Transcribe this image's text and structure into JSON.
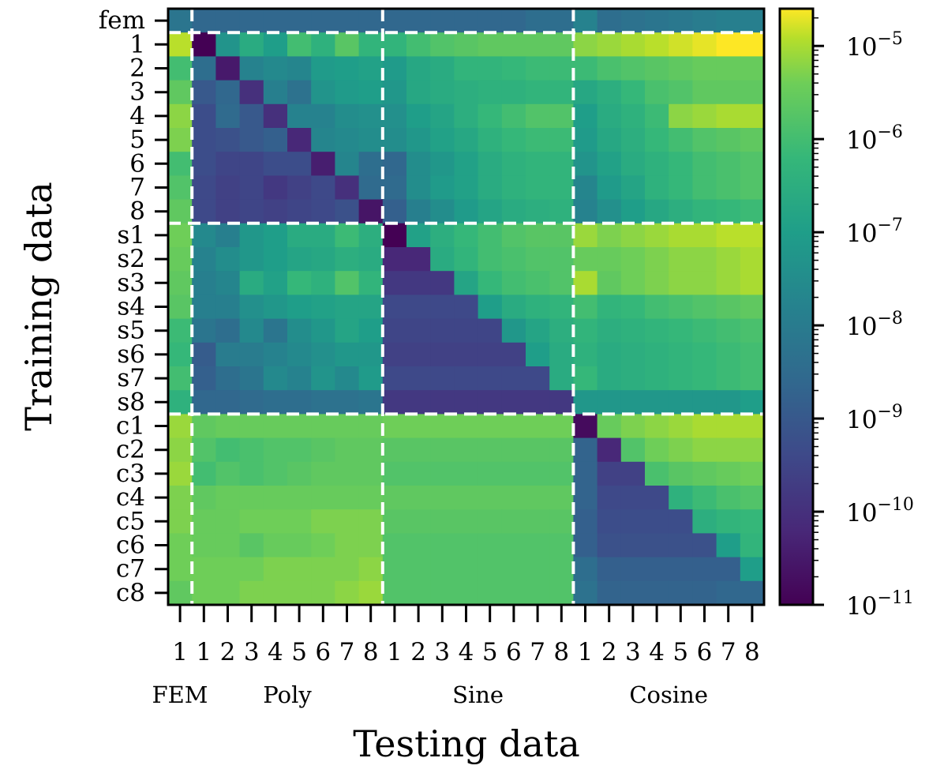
{
  "chart_data": {
    "type": "heatmap",
    "title": "",
    "xlabel": "Testing data",
    "ylabel": "Training data",
    "color_scale": "viridis",
    "scale": "log10",
    "value_range_log10": [
      -11,
      -4.6
    ],
    "x_tick_labels": [
      "1",
      "1",
      "2",
      "3",
      "4",
      "5",
      "6",
      "7",
      "8",
      "1",
      "2",
      "3",
      "4",
      "5",
      "6",
      "7",
      "8",
      "1",
      "2",
      "3",
      "4",
      "5",
      "6",
      "7",
      "8"
    ],
    "x_group_labels": [
      "FEM",
      "Poly",
      "Sine",
      "Cosine"
    ],
    "y_tick_labels": [
      "fem",
      "1",
      "2",
      "3",
      "4",
      "5",
      "6",
      "7",
      "8",
      "s1",
      "s2",
      "s3",
      "s4",
      "s5",
      "s6",
      "s7",
      "s8",
      "c1",
      "c2",
      "c3",
      "c4",
      "c5",
      "c6",
      "c7",
      "c8"
    ],
    "colorbar": {
      "tick_values_log10": [
        -5,
        -6,
        -7,
        -8,
        -9,
        -10,
        -11
      ],
      "tick_labels": [
        "10−5",
        "10−6",
        "10−7",
        "10−8",
        "10−9",
        "10−10",
        "10−11"
      ]
    },
    "divider_rows_after": [
      0,
      8,
      16
    ],
    "divider_cols_after": [
      0,
      8,
      16
    ],
    "values_log10": [
      [
        -8.2,
        -8.6,
        -8.6,
        -8.6,
        -8.6,
        -8.6,
        -8.6,
        -8.6,
        -8.6,
        -8.6,
        -8.6,
        -8.6,
        -8.6,
        -8.6,
        -8.6,
        -8.4,
        -8.4,
        -7.8,
        -8.4,
        -8.3,
        -8.2,
        -8.1,
        -8.0,
        -7.9,
        -7.9
      ],
      [
        -4.9,
        -11.0,
        -7.3,
        -6.6,
        -7.0,
        -6.0,
        -6.4,
        -5.7,
        -6.3,
        -6.3,
        -6.0,
        -5.8,
        -5.7,
        -5.6,
        -5.6,
        -5.6,
        -5.6,
        -5.2,
        -5.1,
        -5.0,
        -4.9,
        -4.8,
        -4.7,
        -4.6,
        -4.6
      ],
      [
        -6.0,
        -8.4,
        -10.5,
        -7.8,
        -7.6,
        -7.7,
        -7.1,
        -7.0,
        -6.9,
        -7.1,
        -6.7,
        -6.6,
        -6.3,
        -6.3,
        -6.2,
        -6.1,
        -6.1,
        -6.1,
        -5.9,
        -5.8,
        -5.7,
        -5.6,
        -5.5,
        -5.5,
        -5.5
      ],
      [
        -5.6,
        -9.0,
        -8.6,
        -10.0,
        -7.9,
        -8.3,
        -7.3,
        -7.1,
        -7.0,
        -7.2,
        -6.7,
        -6.6,
        -6.5,
        -6.4,
        -6.4,
        -6.3,
        -6.3,
        -6.7,
        -6.5,
        -6.2,
        -5.9,
        -5.8,
        -5.6,
        -5.6,
        -5.6
      ],
      [
        -5.2,
        -9.3,
        -8.5,
        -9.0,
        -10.0,
        -7.8,
        -7.8,
        -7.5,
        -7.4,
        -7.4,
        -7.0,
        -6.8,
        -6.5,
        -6.2,
        -6.0,
        -5.8,
        -5.8,
        -7.0,
        -6.6,
        -6.4,
        -6.1,
        -5.2,
        -5.1,
        -5.0,
        -5.0
      ],
      [
        -5.3,
        -9.3,
        -9.2,
        -9.0,
        -8.8,
        -10.2,
        -7.7,
        -7.6,
        -7.5,
        -7.5,
        -7.2,
        -6.9,
        -6.7,
        -6.4,
        -6.2,
        -6.1,
        -6.1,
        -7.1,
        -6.7,
        -6.5,
        -6.2,
        -6.0,
        -5.8,
        -5.7,
        -5.6
      ],
      [
        -6.0,
        -9.3,
        -9.5,
        -9.5,
        -9.3,
        -9.3,
        -10.4,
        -7.7,
        -8.4,
        -8.6,
        -7.5,
        -7.2,
        -6.9,
        -6.6,
        -6.4,
        -6.3,
        -6.3,
        -7.3,
        -6.9,
        -6.6,
        -6.4,
        -6.2,
        -6.0,
        -5.9,
        -5.8
      ],
      [
        -5.8,
        -9.4,
        -9.6,
        -9.5,
        -9.8,
        -9.6,
        -9.4,
        -10.0,
        -8.5,
        -8.5,
        -7.5,
        -7.1,
        -6.9,
        -6.6,
        -6.4,
        -6.3,
        -6.3,
        -7.7,
        -7.1,
        -6.8,
        -6.4,
        -6.2,
        -6.0,
        -5.9,
        -5.8
      ],
      [
        -5.6,
        -9.4,
        -9.6,
        -9.5,
        -9.6,
        -9.5,
        -9.4,
        -9.2,
        -10.6,
        -8.8,
        -7.9,
        -7.5,
        -7.1,
        -6.8,
        -6.6,
        -6.5,
        -6.4,
        -7.8,
        -7.4,
        -7.0,
        -6.7,
        -6.5,
        -6.3,
        -6.2,
        -6.1
      ],
      [
        -5.4,
        -7.6,
        -7.9,
        -7.2,
        -7.0,
        -6.6,
        -6.6,
        -6.1,
        -6.5,
        -11.0,
        -6.9,
        -6.5,
        -6.2,
        -6.0,
        -5.8,
        -5.7,
        -5.7,
        -5.1,
        -5.3,
        -5.2,
        -5.1,
        -5.0,
        -5.0,
        -4.9,
        -4.9
      ],
      [
        -5.5,
        -7.8,
        -7.5,
        -7.2,
        -7.0,
        -6.8,
        -6.7,
        -6.5,
        -6.6,
        -10.2,
        -10.2,
        -6.6,
        -6.3,
        -6.0,
        -5.9,
        -5.8,
        -5.8,
        -5.5,
        -5.5,
        -5.4,
        -5.3,
        -5.2,
        -5.2,
        -5.1,
        -5.0
      ],
      [
        -5.6,
        -7.9,
        -7.7,
        -6.6,
        -6.9,
        -6.2,
        -6.4,
        -5.8,
        -6.3,
        -9.8,
        -9.8,
        -9.8,
        -6.8,
        -6.2,
        -6.0,
        -5.9,
        -5.8,
        -5.0,
        -5.6,
        -5.4,
        -5.3,
        -5.2,
        -5.2,
        -5.1,
        -5.0
      ],
      [
        -5.7,
        -7.9,
        -7.9,
        -7.4,
        -7.2,
        -7.0,
        -6.9,
        -6.8,
        -6.8,
        -9.4,
        -9.4,
        -9.4,
        -9.4,
        -7.0,
        -6.6,
        -6.4,
        -6.3,
        -6.0,
        -6.3,
        -6.2,
        -6.0,
        -5.9,
        -5.8,
        -5.7,
        -5.6
      ],
      [
        -6.1,
        -8.2,
        -8.4,
        -7.6,
        -8.2,
        -7.5,
        -7.2,
        -6.8,
        -7.0,
        -9.5,
        -9.5,
        -9.5,
        -9.5,
        -9.5,
        -7.2,
        -6.8,
        -6.5,
        -6.3,
        -6.5,
        -6.4,
        -6.3,
        -6.2,
        -6.1,
        -6.0,
        -5.9
      ],
      [
        -6.2,
        -8.9,
        -8.0,
        -8.0,
        -7.8,
        -7.6,
        -7.4,
        -7.2,
        -7.2,
        -9.6,
        -9.6,
        -9.6,
        -9.6,
        -9.6,
        -9.6,
        -7.0,
        -6.6,
        -6.4,
        -6.6,
        -6.5,
        -6.4,
        -6.3,
        -6.2,
        -6.1,
        -6.0
      ],
      [
        -6.0,
        -8.8,
        -8.4,
        -8.2,
        -7.6,
        -7.8,
        -7.3,
        -7.6,
        -7.1,
        -9.4,
        -9.4,
        -9.4,
        -9.4,
        -9.4,
        -9.4,
        -9.4,
        -6.6,
        -6.2,
        -6.6,
        -6.5,
        -6.4,
        -6.3,
        -6.2,
        -6.1,
        -6.0
      ],
      [
        -6.4,
        -8.6,
        -8.6,
        -8.5,
        -8.4,
        -8.4,
        -8.3,
        -8.3,
        -8.2,
        -9.8,
        -9.8,
        -9.8,
        -9.8,
        -9.8,
        -9.8,
        -9.8,
        -9.8,
        -7.2,
        -7.2,
        -7.2,
        -7.2,
        -7.2,
        -7.2,
        -7.2,
        -7.0
      ],
      [
        -5.1,
        -5.6,
        -5.5,
        -5.5,
        -5.5,
        -5.5,
        -5.5,
        -5.5,
        -5.5,
        -5.4,
        -5.4,
        -5.4,
        -5.4,
        -5.4,
        -5.4,
        -5.4,
        -5.4,
        -10.8,
        -5.5,
        -5.3,
        -5.2,
        -5.1,
        -5.0,
        -5.0,
        -5.0
      ],
      [
        -5.2,
        -5.8,
        -6.0,
        -5.9,
        -5.8,
        -5.8,
        -5.7,
        -5.6,
        -5.6,
        -5.7,
        -5.7,
        -5.7,
        -5.7,
        -5.7,
        -5.7,
        -5.7,
        -5.7,
        -8.7,
        -10.2,
        -5.8,
        -5.4,
        -5.3,
        -5.2,
        -5.2,
        -5.2
      ],
      [
        -5.1,
        -6.0,
        -5.8,
        -5.9,
        -5.8,
        -5.7,
        -5.6,
        -5.6,
        -5.6,
        -5.8,
        -5.8,
        -5.8,
        -5.8,
        -5.8,
        -5.8,
        -5.8,
        -5.8,
        -8.7,
        -9.6,
        -9.6,
        -5.9,
        -5.7,
        -5.6,
        -5.5,
        -5.4
      ],
      [
        -5.3,
        -5.6,
        -5.5,
        -5.5,
        -5.5,
        -5.5,
        -5.5,
        -5.5,
        -5.5,
        -5.6,
        -5.6,
        -5.6,
        -5.6,
        -5.6,
        -5.6,
        -5.6,
        -5.6,
        -8.7,
        -9.4,
        -9.4,
        -9.4,
        -6.4,
        -6.1,
        -5.9,
        -5.8
      ],
      [
        -5.3,
        -5.5,
        -5.5,
        -5.4,
        -5.4,
        -5.4,
        -5.3,
        -5.3,
        -5.3,
        -5.7,
        -5.7,
        -5.7,
        -5.7,
        -5.7,
        -5.7,
        -5.7,
        -5.7,
        -8.8,
        -9.3,
        -9.3,
        -9.3,
        -9.3,
        -6.5,
        -6.3,
        -6.2
      ],
      [
        -5.4,
        -5.5,
        -5.5,
        -5.7,
        -5.5,
        -5.5,
        -5.4,
        -5.3,
        -5.3,
        -5.8,
        -5.8,
        -5.8,
        -5.8,
        -5.8,
        -5.8,
        -5.8,
        -5.8,
        -8.8,
        -9.2,
        -9.2,
        -9.2,
        -9.2,
        -9.2,
        -7.0,
        -6.3
      ],
      [
        -5.4,
        -5.4,
        -5.4,
        -5.4,
        -5.3,
        -5.3,
        -5.3,
        -5.3,
        -5.2,
        -5.8,
        -5.8,
        -5.8,
        -5.8,
        -5.8,
        -5.8,
        -5.8,
        -5.8,
        -8.4,
        -8.8,
        -8.8,
        -8.8,
        -8.8,
        -8.8,
        -8.8,
        -7.0
      ],
      [
        -5.6,
        -5.4,
        -5.4,
        -5.3,
        -5.3,
        -5.3,
        -5.3,
        -5.2,
        -5.1,
        -5.8,
        -5.8,
        -5.8,
        -5.8,
        -5.8,
        -5.8,
        -5.8,
        -5.8,
        -8.3,
        -8.7,
        -8.7,
        -8.7,
        -8.7,
        -8.7,
        -8.6,
        -8.6
      ]
    ]
  }
}
